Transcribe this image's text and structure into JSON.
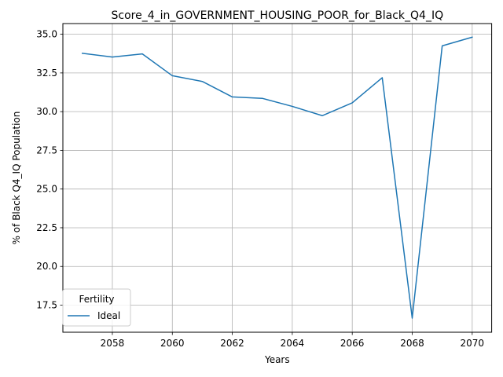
{
  "chart_data": {
    "type": "line",
    "title": "Score_4_in_GOVERNMENT_HOUSING_POOR_for_Black_Q4_IQ",
    "xlabel": "Years",
    "ylabel": "% of Black Q4_IQ Population",
    "xlim": [
      2056.35,
      2070.65
    ],
    "ylim": [
      15.75,
      35.69
    ],
    "xticks": [
      2058,
      2060,
      2062,
      2064,
      2066,
      2068,
      2070
    ],
    "xtick_labels": [
      "2058",
      "2060",
      "2062",
      "2064",
      "2066",
      "2068",
      "2070"
    ],
    "yticks": [
      17.5,
      20.0,
      22.5,
      25.0,
      27.5,
      30.0,
      32.5,
      35.0
    ],
    "ytick_labels": [
      "17.5",
      "20.0",
      "22.5",
      "25.0",
      "27.5",
      "30.0",
      "32.5",
      "35.0"
    ],
    "grid": true,
    "legend": {
      "title": "Fertility",
      "placement": "lower-left"
    },
    "series": [
      {
        "name": "Ideal",
        "color": "#1f77b4",
        "x": [
          2057,
          2058,
          2059,
          2060,
          2061,
          2062,
          2063,
          2064,
          2065,
          2066,
          2067,
          2068,
          2069,
          2070
        ],
        "values": [
          33.77,
          33.53,
          33.73,
          32.32,
          31.95,
          30.95,
          30.86,
          30.34,
          29.74,
          30.57,
          32.19,
          16.66,
          34.25,
          34.81
        ]
      }
    ]
  }
}
